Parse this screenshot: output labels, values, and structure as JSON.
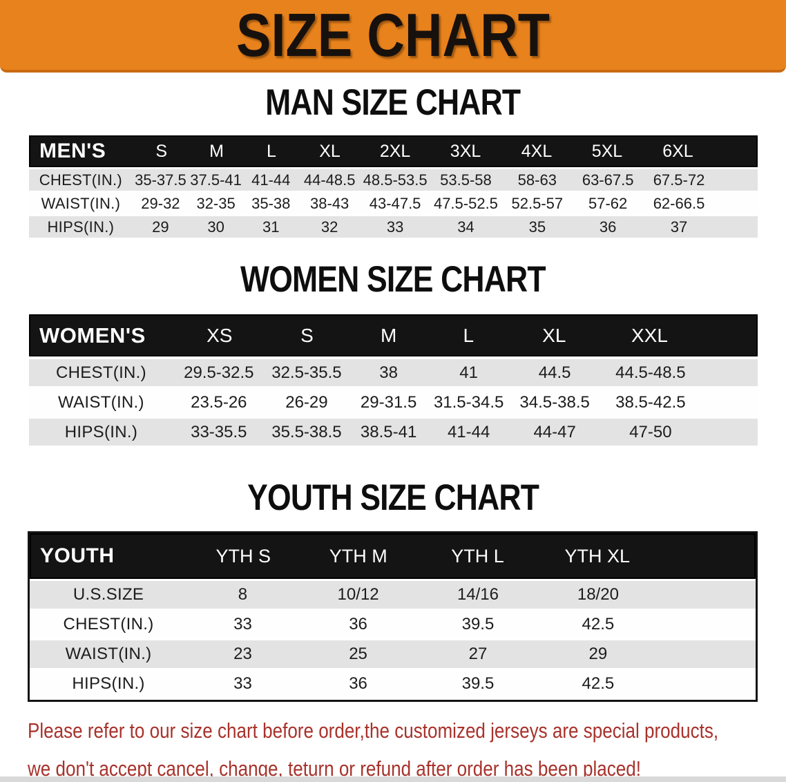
{
  "banner": {
    "title": "SIZE CHART"
  },
  "sections": [
    {
      "heading": "MAN SIZE CHART",
      "header_label": "MEN'S",
      "columns": [
        "S",
        "M",
        "L",
        "XL",
        "2XL",
        "3XL",
        "4XL",
        "5XL",
        "6XL"
      ],
      "rows": [
        {
          "label": "CHEST(IN.)",
          "values": [
            "35-37.5",
            "37.5-41",
            "41-44",
            "44-48.5",
            "48.5-53.5",
            "53.5-58",
            "58-63",
            "63-67.5",
            "67.5-72"
          ]
        },
        {
          "label": "WAIST(IN.)",
          "values": [
            "29-32",
            "32-35",
            "35-38",
            "38-43",
            "43-47.5",
            "47.5-52.5",
            "52.5-57",
            "57-62",
            "62-66.5"
          ]
        },
        {
          "label": "HIPS(IN.)",
          "values": [
            "29",
            "30",
            "31",
            "32",
            "33",
            "34",
            "35",
            "36",
            "37"
          ]
        }
      ]
    },
    {
      "heading": "WOMEN SIZE CHART",
      "header_label": "WOMEN'S",
      "columns": [
        "XS",
        "S",
        "M",
        "L",
        "XL",
        "XXL"
      ],
      "rows": [
        {
          "label": "CHEST(IN.)",
          "values": [
            "29.5-32.5",
            "32.5-35.5",
            "38",
            "41",
            "44.5",
            "44.5-48.5"
          ]
        },
        {
          "label": "WAIST(IN.)",
          "values": [
            "23.5-26",
            "26-29",
            "29-31.5",
            "31.5-34.5",
            "34.5-38.5",
            "38.5-42.5"
          ]
        },
        {
          "label": "HIPS(IN.)",
          "values": [
            "33-35.5",
            "35.5-38.5",
            "38.5-41",
            "41-44",
            "44-47",
            "47-50"
          ]
        }
      ]
    },
    {
      "heading": "YOUTH SIZE CHART",
      "header_label": "YOUTH",
      "columns": [
        "YTH S",
        "YTH M",
        "YTH L",
        "YTH XL"
      ],
      "rows": [
        {
          "label": "U.S.SIZE",
          "values": [
            "8",
            "10/12",
            "14/16",
            "18/20"
          ]
        },
        {
          "label": "CHEST(IN.)",
          "values": [
            "33",
            "36",
            "39.5",
            "42.5"
          ]
        },
        {
          "label": "WAIST(IN.)",
          "values": [
            "23",
            "25",
            "27",
            "29"
          ]
        },
        {
          "label": "HIPS(IN.)",
          "values": [
            "33",
            "36",
            "39.5",
            "42.5"
          ]
        }
      ]
    }
  ],
  "disclaimer": {
    "line1": "Please refer to our size chart before order,the customized jerseys are special products,",
    "line2": "we don't accept cancel, change, teturn or refund after order has been placed!"
  },
  "colors": {
    "banner_bg": "#E8821C",
    "header_bar": "#141414",
    "row_gray": "#E3E3E3",
    "text_dark": "#1C1C1C",
    "disclaimer_red": "#A8322B"
  }
}
